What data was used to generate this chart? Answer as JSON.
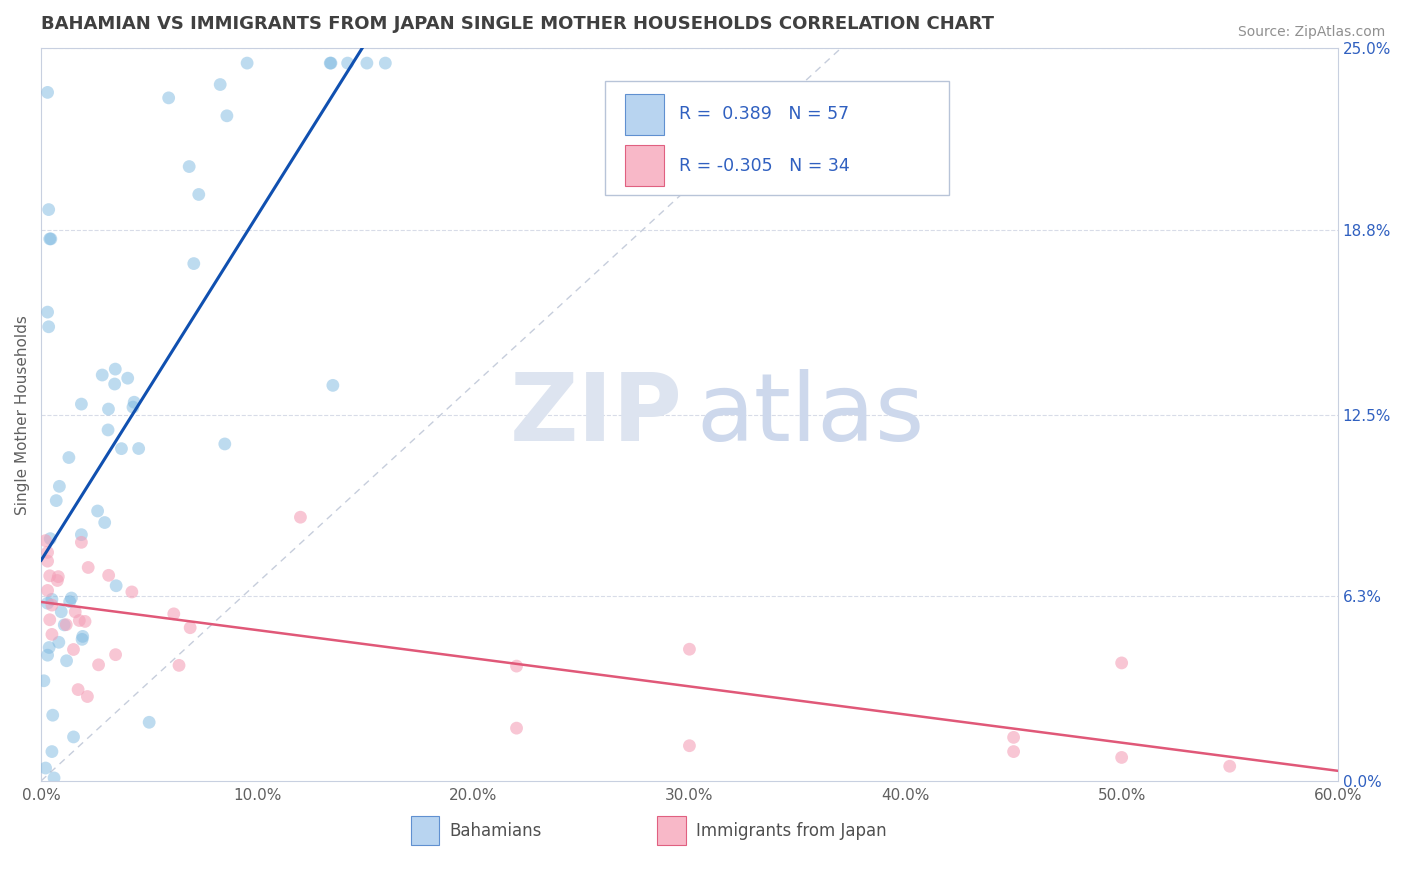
{
  "title": "BAHAMIAN VS IMMIGRANTS FROM JAPAN SINGLE MOTHER HOUSEHOLDS CORRELATION CHART",
  "source": "Source: ZipAtlas.com",
  "ylabel": "Single Mother Households",
  "xlim": [
    0.0,
    0.6
  ],
  "ylim": [
    0.0,
    0.25
  ],
  "xticks": [
    0.0,
    0.1,
    0.2,
    0.3,
    0.4,
    0.5,
    0.6
  ],
  "xticklabels": [
    "0.0%",
    "10.0%",
    "20.0%",
    "30.0%",
    "40.0%",
    "50.0%",
    "60.0%"
  ],
  "yticks_right": [
    0.0,
    0.063,
    0.125,
    0.188,
    0.25
  ],
  "ytick_right_labels": [
    "0.0%",
    "6.3%",
    "12.5%",
    "18.8%",
    "25.0%"
  ],
  "series1_name": "Bahamians",
  "series2_name": "Immigrants from Japan",
  "series1_color": "#7db8e0",
  "series2_color": "#f4a0b8",
  "series1_R": 0.389,
  "series1_N": 57,
  "series2_R": -0.305,
  "series2_N": 34,
  "trend1_color": "#1050b0",
  "trend2_color": "#e05878",
  "background_color": "#ffffff",
  "grid_color": "#d8dce8",
  "title_color": "#404040",
  "legend_color": "#3060c0",
  "legend_sq1_face": "#b8d4f0",
  "legend_sq1_edge": "#6090d0",
  "legend_sq2_face": "#f8b8c8",
  "legend_sq2_edge": "#e06080",
  "ref_line_color": "#c0c8d8",
  "watermark_zip_color": "#dde4f0",
  "watermark_atlas_color": "#cdd8ec"
}
